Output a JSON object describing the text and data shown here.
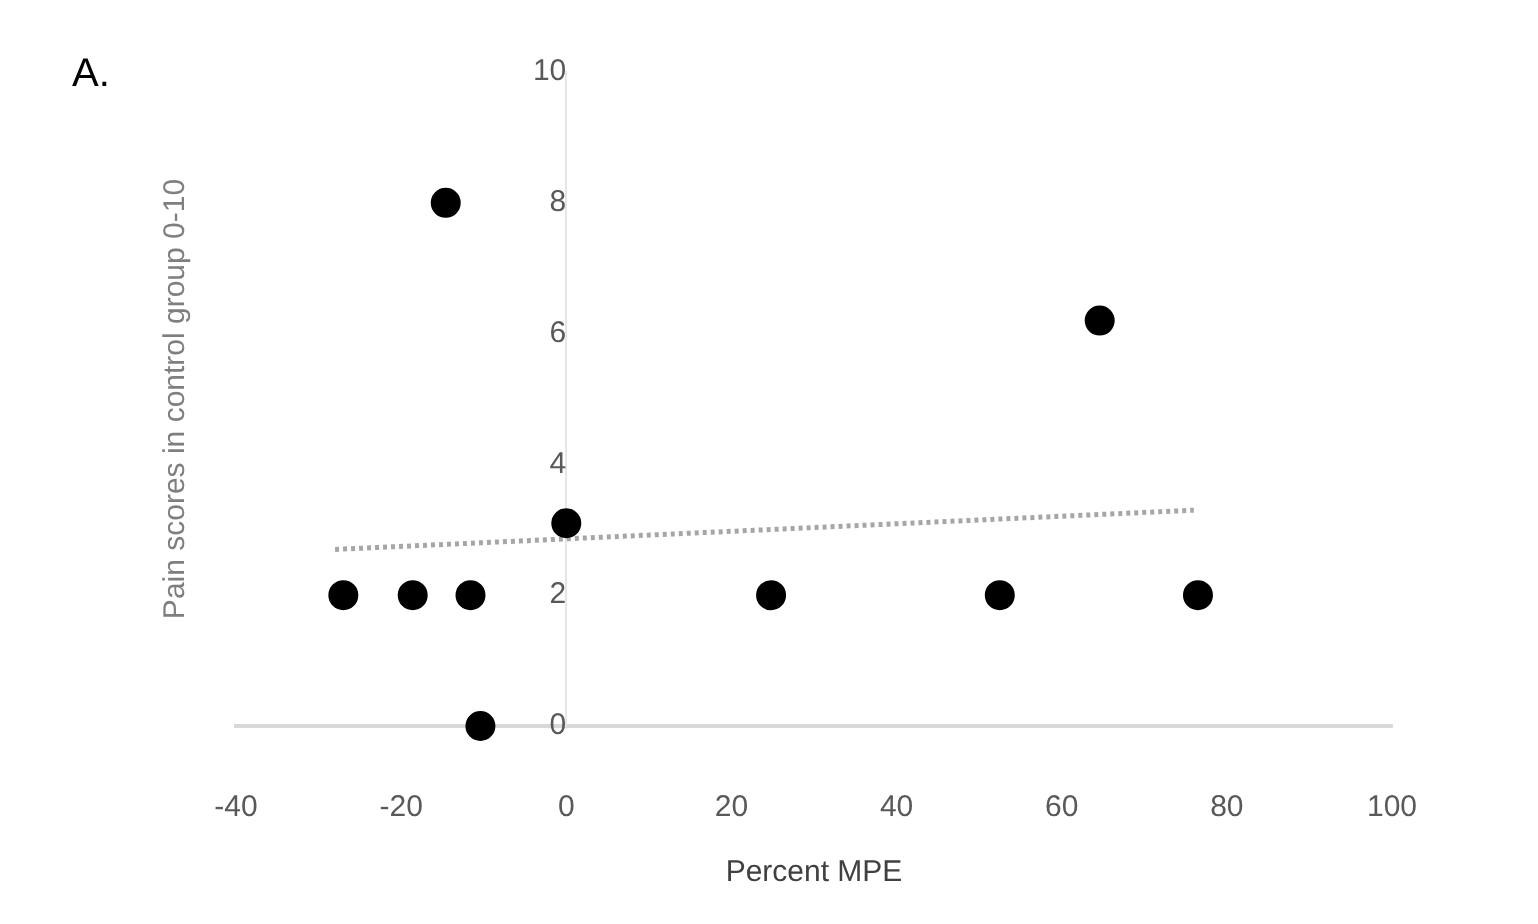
{
  "chart_data": {
    "type": "scatter",
    "annotations": [
      "A."
    ],
    "xlabel": "Percent MPE",
    "ylabel": "Pain scores in control group 0-10",
    "xlim": [
      -40,
      100
    ],
    "xticks": [
      -40,
      -20,
      0,
      20,
      40,
      60,
      80,
      100
    ],
    "ylim": [
      0,
      10
    ],
    "yticks": [
      0,
      2,
      4,
      6,
      8,
      10
    ],
    "grid": false,
    "legend": false,
    "marker": "circle",
    "series": [
      {
        "color": "#000000",
        "x": [
          -27,
          -18.6,
          -11.6,
          -14.6,
          -10.4,
          0,
          24.8,
          52.5,
          64.6,
          76.5
        ],
        "values": [
          2,
          2,
          2,
          8,
          0,
          3.1,
          2,
          2,
          6.2,
          2
        ]
      },
      {
        "type": "line",
        "color": "#a6a6a6",
        "line_style": "dotted",
        "marker": "none",
        "x": [
          -28,
          76
        ],
        "values": [
          2.7,
          3.3
        ]
      }
    ]
  }
}
